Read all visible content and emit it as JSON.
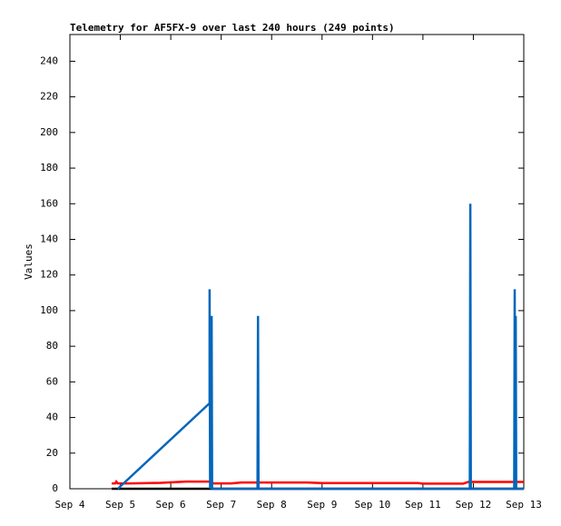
{
  "chart_data": {
    "type": "line",
    "title": "Telemetry for AF5FX-9 over last 240 hours (249 points)",
    "y_label": "Values",
    "xlim": [
      0,
      9
    ],
    "ylim": [
      0,
      255
    ],
    "xticks": [
      {
        "value": 0,
        "label": "Sep 4"
      },
      {
        "value": 1,
        "label": "Sep 5"
      },
      {
        "value": 2,
        "label": "Sep 6"
      },
      {
        "value": 3,
        "label": "Sep 7"
      },
      {
        "value": 4,
        "label": "Sep 8"
      },
      {
        "value": 5,
        "label": "Sep 9"
      },
      {
        "value": 6,
        "label": "Sep 10"
      },
      {
        "value": 7,
        "label": "Sep 11"
      },
      {
        "value": 8,
        "label": "Sep 12"
      },
      {
        "value": 9,
        "label": "Sep 13"
      }
    ],
    "yticks": [
      0,
      20,
      40,
      60,
      80,
      100,
      120,
      140,
      160,
      180,
      200,
      220,
      240
    ],
    "series": [
      {
        "color": "#ff0000",
        "x": [
          0.83,
          0.9,
          0.92,
          0.95,
          1.2,
          1.8,
          2.3,
          2.78,
          2.85,
          3.2,
          3.4,
          4.0,
          4.7,
          5.0,
          6.0,
          6.9,
          7.0,
          7.8,
          7.9,
          8.6,
          9.0
        ],
        "values": [
          3,
          3,
          4,
          3,
          3,
          3.3,
          4,
          4,
          3,
          3,
          3.5,
          3.5,
          3.5,
          3.2,
          3.2,
          3.2,
          2.9,
          2.9,
          3.8,
          3.8,
          3.8
        ]
      },
      {
        "color": "#000000",
        "x": [
          0.83,
          9.0
        ],
        "values": [
          0,
          0
        ]
      },
      {
        "color": "#0066bb",
        "x": [
          0.95,
          2.77,
          2.77,
          2.78,
          2.81,
          2.82,
          3.72,
          3.73,
          3.74,
          7.93,
          7.94,
          7.95,
          8.81,
          8.82,
          8.83,
          8.84,
          8.85,
          9.0
        ],
        "values": [
          0,
          48,
          112,
          0,
          97,
          0,
          0,
          97,
          0,
          0,
          160,
          0,
          0,
          112,
          0,
          97,
          0,
          0
        ]
      }
    ]
  }
}
